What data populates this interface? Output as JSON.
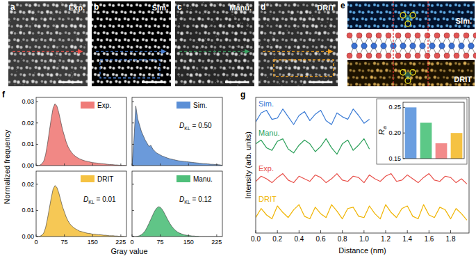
{
  "images": [
    {
      "label": "a",
      "caption": "Exp."
    },
    {
      "label": "b",
      "caption": "Sim."
    },
    {
      "label": "c",
      "caption": "Manu."
    },
    {
      "label": "d",
      "caption": "DRIT"
    }
  ],
  "structure_panel": {
    "label": "e",
    "top_caption": "Sim.",
    "bottom_caption": "DRIT"
  },
  "histogram_panel": {
    "label": "f",
    "x_label": "Gray value",
    "y_label": "Normalized frequency"
  },
  "profile_panel": {
    "label": "g"
  },
  "chart_data": [
    {
      "type": "area",
      "legend": "upper right",
      "tick_labels": "y",
      "x": [
        0,
        5,
        10,
        15,
        20,
        25,
        30,
        35,
        40,
        45,
        50,
        55,
        60,
        65,
        70,
        75,
        80,
        85,
        90,
        95,
        100,
        105,
        110,
        115,
        120,
        125,
        130,
        135,
        140,
        145,
        150,
        155,
        160,
        165,
        170,
        175,
        180,
        185,
        190,
        195,
        200,
        205,
        210,
        215,
        220,
        225,
        230,
        235,
        240
      ],
      "series": [
        {
          "name": "Exp.",
          "color": "#ef7b78",
          "values": [
            0,
            0,
            0.0002,
            0.0008,
            0.002,
            0.005,
            0.01,
            0.016,
            0.022,
            0.027,
            0.029,
            0.028,
            0.025,
            0.021,
            0.017,
            0.014,
            0.011,
            0.0088,
            0.0072,
            0.006,
            0.005,
            0.0043,
            0.0037,
            0.0032,
            0.0028,
            0.0025,
            0.0022,
            0.002,
            0.0018,
            0.0016,
            0.0014,
            0.0013,
            0.0012,
            0.0011,
            0.001,
            0.0009,
            0.0008,
            0.0007,
            0.0006,
            0.0005,
            0.0005,
            0.0004,
            0.0003,
            0.0003,
            0.0002,
            0.0002,
            0.0001,
            0.0001,
            0
          ]
        }
      ],
      "xlim": [
        0,
        240
      ],
      "xticks": [
        0,
        75,
        150,
        225
      ],
      "ylim": [
        0,
        0.032
      ],
      "yticks": [
        {
          "value": 0,
          "label": "0.00"
        },
        0.01,
        0.02,
        0.03
      ]
    },
    {
      "type": "area",
      "legend": "upper right",
      "tick_labels": false,
      "x": [
        0,
        5,
        10,
        15,
        20,
        25,
        30,
        35,
        40,
        45,
        50,
        55,
        60,
        65,
        70,
        75,
        80,
        85,
        90,
        95,
        100,
        105,
        110,
        115,
        120,
        125,
        130,
        135,
        140,
        145,
        150,
        155,
        160,
        165,
        170,
        175,
        180,
        185,
        190,
        195,
        200,
        205,
        210,
        215,
        220,
        225,
        230,
        235,
        240
      ],
      "series": [
        {
          "name": "Sim.",
          "color": "#5b8fd6",
          "values": [
            0,
            0.012,
            0.028,
            0.022,
            0.019,
            0.016,
            0.014,
            0.012,
            0.0105,
            0.009,
            0.0095,
            0.0078,
            0.0068,
            0.006,
            0.0055,
            0.005,
            0.0045,
            0.0042,
            0.0038,
            0.0035,
            0.0032,
            0.003,
            0.0028,
            0.0026,
            0.0024,
            0.0022,
            0.0021,
            0.002,
            0.0019,
            0.0018,
            0.0017,
            0.0016,
            0.0015,
            0.0014,
            0.0013,
            0.0012,
            0.0011,
            0.001,
            0.0009,
            0.0009,
            0.0008,
            0.0007,
            0.0006,
            0.0006,
            0.0005,
            0.0005,
            0.0004,
            0.0003,
            0.0001
          ]
        }
      ],
      "annotation": {
        "text": "D",
        "subscript": "KL",
        "suffix": " = 0.50"
      },
      "xlim": [
        0,
        240
      ],
      "xticks": [
        0,
        75,
        150,
        225
      ],
      "ylim": [
        0,
        0.032
      ],
      "yticks": [
        {
          "value": 0,
          "label": "0.00"
        },
        0.01,
        0.02,
        0.03
      ]
    },
    {
      "type": "area",
      "legend": "upper right",
      "x": [
        0,
        5,
        10,
        15,
        20,
        25,
        30,
        35,
        40,
        45,
        50,
        55,
        60,
        65,
        70,
        75,
        80,
        85,
        90,
        95,
        100,
        105,
        110,
        115,
        120,
        125,
        130,
        135,
        140,
        145,
        150,
        155,
        160,
        165,
        170,
        175,
        180,
        185,
        190,
        195,
        200,
        205,
        210,
        215,
        220,
        225,
        230,
        235,
        240
      ],
      "series": [
        {
          "name": "DRIT",
          "color": "#f5c242",
          "values": [
            0,
            0,
            0.0001,
            0.0005,
            0.0013,
            0.0033,
            0.0067,
            0.0107,
            0.0147,
            0.0181,
            0.0195,
            0.0188,
            0.0168,
            0.0141,
            0.0114,
            0.0094,
            0.0074,
            0.0059,
            0.0048,
            0.004,
            0.0034,
            0.0029,
            0.0025,
            0.0021,
            0.0019,
            0.0017,
            0.0015,
            0.0013,
            0.0012,
            0.0011,
            0.0009,
            0.0009,
            0.0008,
            0.0007,
            0.0007,
            0.0006,
            0.0005,
            0.0005,
            0.0004,
            0.0003,
            0.0003,
            0.0003,
            0.0002,
            0.0002,
            0.0001,
            0.0001,
            0.0001,
            0,
            0
          ]
        }
      ],
      "annotation": {
        "text": "D",
        "subscript": "KL",
        "suffix": " = 0.01"
      },
      "xlim": [
        0,
        240
      ],
      "xticks": [
        0,
        75,
        150,
        225
      ],
      "ylim": [
        0,
        0.025
      ],
      "yticks": [
        {
          "value": 0,
          "label": "0.00"
        },
        0.01,
        0.02
      ]
    },
    {
      "type": "area",
      "legend": "upper right",
      "tick_labels": "x",
      "x": [
        0,
        5,
        10,
        15,
        20,
        25,
        30,
        35,
        40,
        45,
        50,
        55,
        60,
        65,
        70,
        75,
        80,
        85,
        90,
        95,
        100,
        105,
        110,
        115,
        120,
        125,
        130,
        135,
        140,
        145,
        150,
        155,
        160,
        165,
        170,
        175,
        180,
        185,
        190,
        195,
        200,
        205,
        210,
        215,
        220,
        225,
        230,
        235,
        240
      ],
      "series": [
        {
          "name": "Manu.",
          "color": "#4fbf7a",
          "values": [
            0,
            0,
            0,
            0.0001,
            0.0003,
            0.0007,
            0.0013,
            0.0022,
            0.0035,
            0.005,
            0.0066,
            0.0082,
            0.0097,
            0.0108,
            0.0114,
            0.0112,
            0.0104,
            0.0092,
            0.0078,
            0.0064,
            0.0051,
            0.004,
            0.0031,
            0.0024,
            0.0018,
            0.0014,
            0.0011,
            0.0008,
            0.0006,
            0.0005,
            0.0004,
            0.0003,
            0.0002,
            0.0002,
            0.0001,
            0.0001,
            0,
            0,
            0,
            0,
            0,
            0,
            0,
            0,
            0,
            0,
            0,
            0,
            0
          ]
        }
      ],
      "annotation": {
        "text": "D",
        "subscript": "KL",
        "suffix": " = 0.12"
      },
      "xlim": [
        0,
        240
      ],
      "xticks": [
        0,
        75,
        150,
        225
      ],
      "ylim": [
        0,
        0.025
      ],
      "yticks": [
        {
          "value": 0,
          "label": "0.00"
        },
        0.01,
        0.02
      ]
    },
    {
      "type": "line",
      "x_label": "Distance (nm)",
      "y_label": "Intensity (arb. units)",
      "tick_labels": "x",
      "x": [
        0,
        0.05,
        0.1,
        0.15,
        0.2,
        0.25,
        0.3,
        0.35,
        0.4,
        0.45,
        0.5,
        0.55,
        0.6,
        0.65,
        0.7,
        0.75,
        0.8,
        0.85,
        0.9,
        0.95,
        1,
        1.05,
        1.1,
        1.15,
        1.2,
        1.25,
        1.3,
        1.35,
        1.4,
        1.45,
        1.5,
        1.55,
        1.6,
        1.65,
        1.7,
        1.75,
        1.8,
        1.85,
        1.9,
        1.95
      ],
      "series": [
        {
          "name": "Sim.",
          "color": "#3a7bd5",
          "values": [
            8.6,
            9.3,
            9.5,
            8.8,
            8.9,
            9.6,
            9.0,
            8.4,
            9.1,
            9.4,
            8.7,
            9.2,
            9.5,
            8.7,
            8.4,
            9.3,
            9.0,
            8.8,
            9.6,
            9.1,
            8.5,
            8.8,
            null,
            null,
            null,
            null,
            null,
            null,
            null,
            null,
            null,
            null,
            null,
            null,
            null,
            null,
            null,
            null,
            null,
            null
          ]
        },
        {
          "name": "Manu.",
          "color": "#2ca05a",
          "values": [
            6.9,
            7.2,
            6.6,
            6.4,
            7.1,
            7.3,
            6.5,
            6.2,
            6.8,
            7.2,
            6.9,
            6.3,
            6.7,
            7.3,
            6.6,
            6.1,
            6.9,
            7.2,
            6.4,
            6.8,
            7.3,
            6.5,
            null,
            null,
            null,
            null,
            null,
            null,
            null,
            null,
            null,
            null,
            null,
            null,
            null,
            null,
            null,
            null,
            null,
            null
          ]
        },
        {
          "name": "Exp.",
          "color": "#e8504a",
          "values": [
            4.0,
            4.4,
            4.2,
            3.9,
            4.3,
            4.6,
            4.1,
            3.9,
            4.4,
            4.2,
            4.0,
            4.5,
            4.3,
            3.9,
            4.2,
            4.6,
            4.1,
            4.0,
            4.4,
            4.3,
            3.9,
            4.5,
            4.2,
            4.0,
            4.4,
            4.6,
            4.0,
            4.1,
            4.5,
            4.2,
            3.9,
            4.3,
            4.6,
            4.1,
            4.0,
            4.4,
            4.3,
            3.9,
            4.2,
            3.8
          ]
        },
        {
          "name": "DRIT",
          "color": "#f0b400",
          "values": [
            1.2,
            1.9,
            1.4,
            1.1,
            2.1,
            1.6,
            1.2,
            1.8,
            2.2,
            1.3,
            1.1,
            2.0,
            1.5,
            1.2,
            2.2,
            1.7,
            1.1,
            1.9,
            2.0,
            1.3,
            1.2,
            2.1,
            1.5,
            1.1,
            2.2,
            1.6,
            1.2,
            1.9,
            2.1,
            1.3,
            1.1,
            2.2,
            1.4,
            1.2,
            2.0,
            1.8,
            1.1,
            1.9,
            1.5,
            1.0
          ]
        }
      ],
      "xlim": [
        0,
        1.97
      ],
      "xticks": [
        {
          "value": 0,
          "label": "0.0"
        },
        0.2,
        0.4,
        0.6,
        0.8,
        {
          "value": 1,
          "label": "1.0"
        },
        1.2,
        1.4,
        1.6,
        1.8
      ],
      "ylim": [
        0,
        10.5
      ]
    },
    {
      "type": "bar",
      "tick_labels": "y",
      "y_label": {
        "text": "R",
        "subscript": "a"
      },
      "categories": [
        null,
        null,
        null,
        null
      ],
      "values": [
        0.25,
        0.22,
        0.18,
        0.2
      ],
      "colors": [
        "#6a9ee0",
        "#5cc887",
        "#f28b8b",
        "#f5c242"
      ],
      "ylim": [
        0.15,
        0.26
      ],
      "yticks": [
        0.15,
        {
          "value": 0.2,
          "label": "0.20"
        },
        0.25
      ]
    }
  ]
}
